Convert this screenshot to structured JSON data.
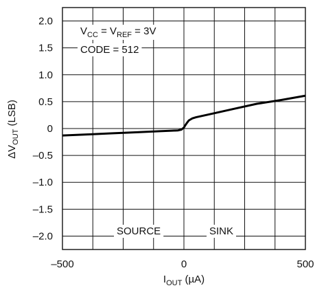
{
  "chart_data": {
    "type": "line",
    "xlabel": {
      "main": "I",
      "sub": "OUT",
      "unit": " (µA)"
    },
    "ylabel": {
      "delta": "ΔV",
      "sub": "OUT",
      "unit": " (LSB)"
    },
    "xlim": [
      -500,
      500
    ],
    "ylim": [
      -2.25,
      2.25
    ],
    "x_ticks": [
      -500,
      -375,
      -250,
      -125,
      0,
      125,
      250,
      375,
      500
    ],
    "x_tick_labels": [
      "–500",
      "",
      "",
      "",
      "0",
      "",
      "",
      "",
      "500"
    ],
    "y_ticks": [
      2.0,
      1.5,
      1.0,
      0.5,
      0,
      -0.5,
      -1.0,
      -1.5,
      -2.0
    ],
    "y_tick_labels": [
      "2.0",
      "1.5",
      "1.0",
      "0.5",
      "0",
      "–0.5",
      "–1.0",
      "–1.5",
      "–2.0"
    ],
    "grid": true,
    "annotations": {
      "condition_line1": {
        "v": "V",
        "cc": "CC",
        "eq1": " = V",
        "ref": "REF",
        "eq2": " = 3V"
      },
      "condition_line2": "CODE = 512",
      "source_label": "SOURCE",
      "sink_label": "SINK"
    },
    "series": [
      {
        "x": [
          -500,
          -400,
          -300,
          -200,
          -100,
          -50,
          -25,
          -10,
          0,
          10,
          20,
          35,
          50,
          100,
          200,
          300,
          400,
          500
        ],
        "y": [
          -0.13,
          -0.11,
          -0.09,
          -0.07,
          -0.05,
          -0.04,
          -0.035,
          -0.02,
          0.02,
          0.09,
          0.15,
          0.19,
          0.21,
          0.26,
          0.36,
          0.46,
          0.53,
          0.61
        ]
      }
    ]
  }
}
